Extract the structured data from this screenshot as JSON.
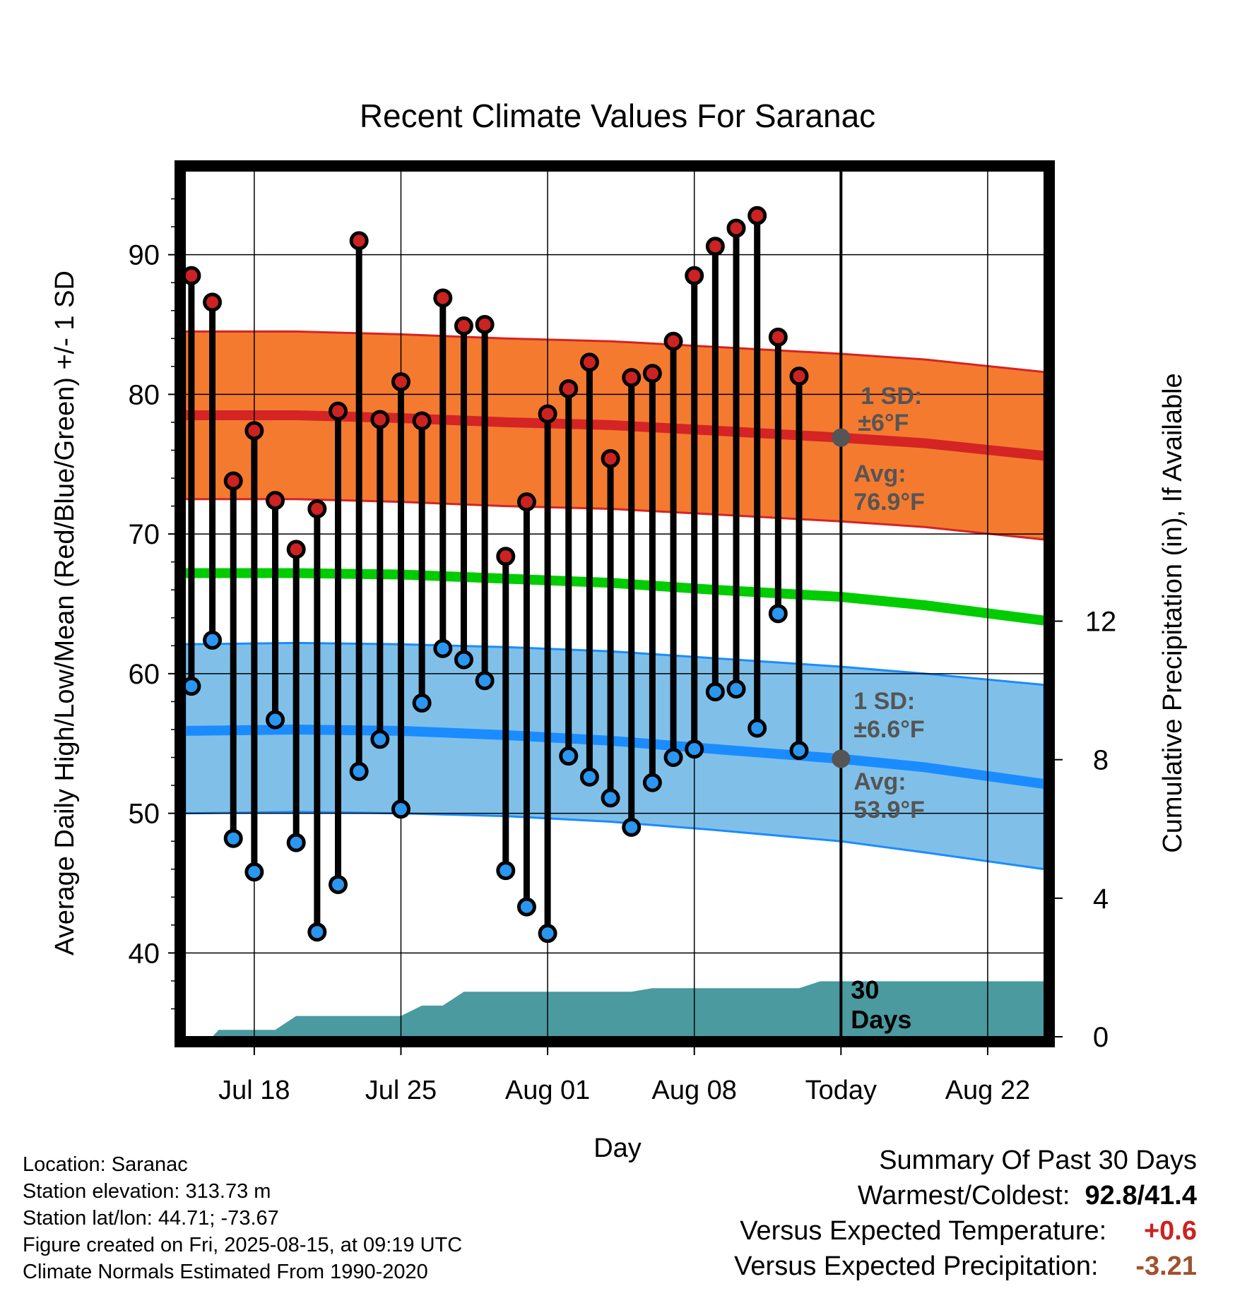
{
  "chart_data": {
    "type": "line",
    "title": "Recent Climate Values For Saranac",
    "xlabel": "Day",
    "ylabel": "Average Daily High/Low/Mean (Red/Blue/Green) +/- 1 SD",
    "y2label": "Cumulative Precipitation (in), If Available",
    "ylim": [
      34,
      96
    ],
    "y2lim": [
      0,
      25
    ],
    "yticks": [
      40,
      50,
      60,
      70,
      80,
      90
    ],
    "y2ticks": [
      0,
      4,
      8,
      12
    ],
    "x_tick_labels": [
      {
        "day": 18,
        "label": "Jul 18"
      },
      {
        "day": 25,
        "label": "Jul 25"
      },
      {
        "day": 32,
        "label": "Aug 01"
      },
      {
        "day": 39,
        "label": "Aug 08"
      },
      {
        "day": 46,
        "label": "Today"
      },
      {
        "day": 53,
        "label": "Aug 22"
      }
    ],
    "xlim": [
      14.7,
      55.7
    ],
    "today_day": 46,
    "today_label": "30 Days",
    "grid": true,
    "highs": [
      88.5,
      86.6,
      73.8,
      77.4,
      72.4,
      68.9,
      71.8,
      78.8,
      91.0,
      78.2,
      80.9,
      78.1,
      86.9,
      84.9,
      85.0,
      68.4,
      72.3,
      78.6,
      80.4,
      82.3,
      75.4,
      81.2,
      81.5,
      83.8,
      88.5,
      90.6,
      91.9,
      92.8,
      84.1,
      81.3
    ],
    "lows": [
      59.1,
      62.4,
      48.2,
      45.8,
      56.7,
      47.9,
      41.5,
      44.9,
      53.0,
      55.3,
      50.3,
      57.9,
      61.8,
      61.0,
      59.5,
      45.9,
      43.3,
      41.4,
      54.1,
      52.6,
      51.1,
      49.0,
      52.2,
      54.0,
      54.6,
      58.7,
      58.9,
      56.1,
      64.3,
      54.5
    ],
    "high_days_start": 15,
    "normal_high": {
      "days": [
        14.7,
        20,
        25,
        30,
        35,
        40,
        46,
        50,
        55.7
      ],
      "values": [
        78.5,
        78.5,
        78.3,
        78.0,
        77.8,
        77.4,
        76.9,
        76.5,
        75.6
      ]
    },
    "normal_high_sd": 6.0,
    "normal_low": {
      "days": [
        14.7,
        20,
        25,
        30,
        35,
        40,
        46,
        50,
        55.7
      ],
      "values": [
        55.9,
        56.0,
        55.9,
        55.6,
        55.2,
        54.6,
        53.9,
        53.3,
        52.1
      ]
    },
    "normal_low_sd_band": {
      "upper": [
        62.1,
        62.2,
        62.1,
        61.9,
        61.6,
        61.1,
        60.5,
        60.0,
        59.2
      ],
      "lower": [
        50.0,
        50.1,
        50.0,
        49.8,
        49.4,
        48.8,
        48.0,
        47.2,
        46.0
      ]
    },
    "normal_mean": {
      "days": [
        14.7,
        20,
        25,
        30,
        35,
        40,
        46,
        50,
        55.7
      ],
      "values": [
        67.2,
        67.2,
        67.1,
        66.8,
        66.5,
        66.0,
        65.5,
        64.9,
        63.8
      ]
    },
    "precip_cumulative": {
      "days": [
        14.7,
        16,
        16.3,
        19,
        20,
        21,
        22,
        25,
        26,
        27,
        28,
        36,
        37,
        44,
        45,
        55.7
      ],
      "values": [
        0.0,
        0.0,
        0.2,
        0.2,
        0.6,
        0.6,
        0.6,
        0.6,
        0.9,
        0.9,
        1.3,
        1.3,
        1.4,
        1.4,
        1.6,
        1.6
      ]
    },
    "annotations": {
      "high_sd_label": "1 SD:",
      "high_sd_value": "±6°F",
      "high_avg_label": "Avg:",
      "high_avg_value": "76.9°F",
      "low_sd_label": "1 SD:",
      "low_sd_value": "±6.6°F",
      "low_avg_label": "Avg:",
      "low_avg_value": "53.9°F"
    },
    "colors": {
      "high_band": "#f47a30",
      "high_line": "#d42424",
      "low_band": "#80c0e8",
      "low_line": "#1a8cff",
      "mean_line": "#00cc00",
      "precip": "#4a9aa0",
      "high_dot": "#cc2222",
      "low_dot": "#2a96f0",
      "avg_dot": "#555555",
      "annotation_text": "#555555"
    }
  },
  "footer": {
    "location": "Location: Saranac",
    "elevation": "Station elevation: 313.73 m",
    "latlon": "Station lat/lon: 44.71; -73.67",
    "created": "Figure created on Fri, 2025-08-15, at 09:19 UTC",
    "normals": "Climate Normals Estimated From 1990-2020"
  },
  "summary": {
    "heading": "Summary Of Past 30 Days",
    "warm_cold_label": "Warmest/Coldest:",
    "warm_cold_value": "92.8/41.4",
    "temp_label": "Versus Expected Temperature:",
    "temp_value": "+0.6",
    "temp_color": "#cc2222",
    "precip_label": "Versus Expected Precipitation:",
    "precip_value": "-3.21",
    "precip_color": "#a0522d"
  }
}
